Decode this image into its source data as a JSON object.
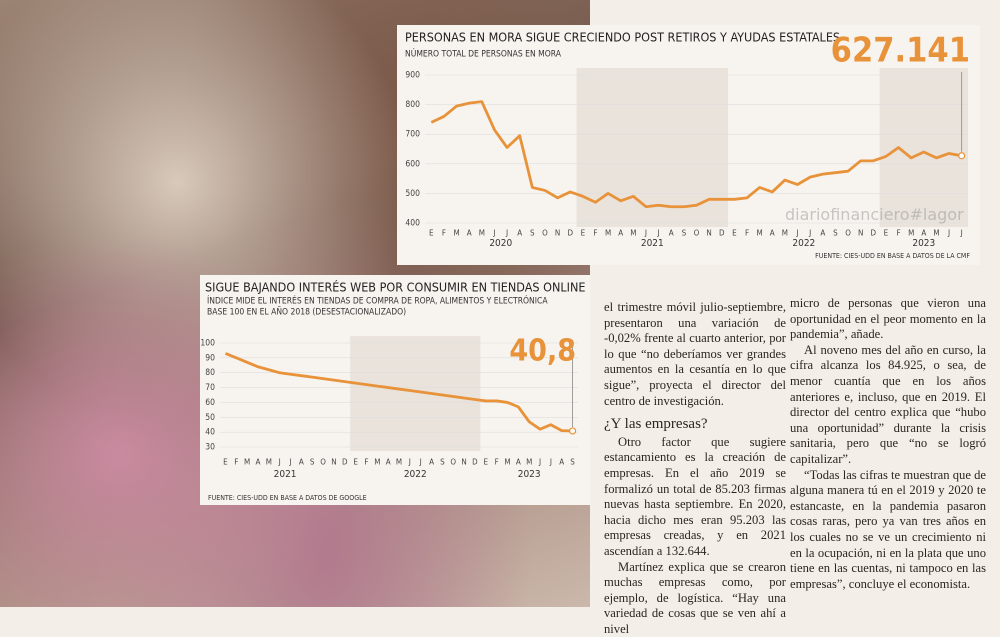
{
  "chart_data": [
    {
      "type": "line",
      "title": "PERSONAS EN MORA SIGUE CRECIENDO POST RETIROS Y AYUDAS ESTATALES",
      "subtitle": [
        "NÚMERO TOTAL DE PERSONAS EN MORA"
      ],
      "categories": [
        "E",
        "F",
        "M",
        "A",
        "M",
        "J",
        "J",
        "A",
        "S",
        "O",
        "N",
        "D",
        "E",
        "F",
        "M",
        "A",
        "M",
        "J",
        "J",
        "A",
        "S",
        "O",
        "N",
        "D",
        "E",
        "F",
        "M",
        "A",
        "M",
        "J",
        "J",
        "A",
        "S",
        "O",
        "N",
        "D",
        "E",
        "F",
        "M",
        "A",
        "M",
        "J",
        "J"
      ],
      "year_labels": [
        "2020",
        "2021",
        "2022",
        "2023"
      ],
      "values": [
        740,
        760,
        795,
        805,
        810,
        715,
        655,
        695,
        520,
        510,
        485,
        505,
        490,
        470,
        500,
        475,
        490,
        455,
        460,
        455,
        455,
        460,
        480,
        480,
        480,
        485,
        520,
        505,
        545,
        530,
        555,
        565,
        570,
        575,
        610,
        610,
        625,
        655,
        620,
        640,
        620,
        635,
        627.141
      ],
      "value_labels": [
        null,
        null,
        null,
        null,
        null,
        null,
        null,
        null,
        null,
        null,
        null,
        null,
        null,
        null,
        null,
        null,
        null,
        null,
        null,
        null,
        null,
        null,
        null,
        null,
        null,
        null,
        null,
        null,
        null,
        null,
        null,
        null,
        null,
        null,
        null,
        null,
        null,
        null,
        null,
        null,
        null,
        null,
        "627.141"
      ],
      "color": "#e8923a",
      "ylim": [
        400,
        900
      ],
      "yticks": [
        400,
        500,
        600,
        700,
        800,
        900
      ],
      "source": "FUENTE: CIES-UDD EN BASE A DATOS DE LA CMF"
    },
    {
      "type": "line",
      "title": "SIGUE BAJANDO INTERÉS WEB POR CONSUMIR EN TIENDAS ONLINE",
      "subtitle": [
        "ÍNDICE MIDE EL INTERÉS EN TIENDAS DE COMPRA DE ROPA, ALIMENTOS Y ELECTRÓNICA",
        "BASE 100 EN EL AÑO 2018 (DESESTACIONALIZADO)"
      ],
      "categories": [
        "E",
        "F",
        "M",
        "A",
        "M",
        "J",
        "J",
        "A",
        "S",
        "O",
        "N",
        "D",
        "E",
        "F",
        "M",
        "A",
        "M",
        "J",
        "J",
        "A",
        "S",
        "O",
        "N",
        "D",
        "E",
        "F",
        "M",
        "A",
        "M",
        "J",
        "J",
        "A",
        "S"
      ],
      "year_labels": [
        "2021",
        "2022",
        "2023"
      ],
      "values": [
        93,
        90,
        87,
        84,
        82,
        80,
        79,
        78,
        77,
        76,
        75,
        74,
        73,
        72,
        71,
        70,
        69,
        68,
        67,
        66,
        65,
        64,
        63,
        62,
        61,
        61,
        60,
        57,
        47,
        42,
        45,
        41,
        40.8
      ],
      "value_labels": [
        null,
        null,
        null,
        null,
        null,
        null,
        null,
        null,
        null,
        null,
        null,
        null,
        null,
        null,
        null,
        null,
        null,
        null,
        null,
        null,
        null,
        null,
        null,
        null,
        null,
        null,
        null,
        null,
        null,
        null,
        null,
        null,
        "40,8"
      ],
      "color": "#e8923a",
      "ylim": [
        30,
        100
      ],
      "yticks": [
        30,
        40,
        50,
        60,
        70,
        80,
        90,
        100
      ],
      "source": "FUENTE: CIES-UDD EN BASE A DATOS DE GOOGLE"
    }
  ],
  "watermark": "diariofinanciero#lagor",
  "article": {
    "column_1": [
      "el trimestre móvil julio-septiembre, presentaron una variación de -0,02% frente al cuarto anterior, por lo que “no deberíamos ver grandes aumentos en la cesantía en lo que sigue”, proyecta el director del centro de investigación."
    ],
    "heading": "¿Y las empresas?",
    "column_1_after": [
      "Otro factor que sugiere estancamiento es la creación de empresas. En el año 2019 se formalizó un total de 85.203 firmas nuevas hasta septiembre. En 2020, hacia dicho mes eran 95.203 las empresas creadas, y en 2021 ascendían a 132.644.",
      "Martínez explica que se crearon muchas empresas como, por ejemplo, de logística. “Hay una variedad de cosas que se ven ahí a nivel"
    ],
    "column_2": [
      "micro de personas que vieron una oportunidad en el peor momento en la pandemia”, añade.",
      "Al noveno mes del año en curso, la cifra alcanza los 84.925, o sea, de menor cuantía que en los años anteriores e, incluso, que en 2019. El director del centro explica que “hubo una oportunidad” durante la crisis sanitaria, pero que “no se logró capitalizar”.",
      "“Todas las cifras te muestran que de alguna manera tú en el 2019 y 2020 te estancaste, en la pandemia pasaron cosas raras, pero ya van tres años en los cuales no se ve un crecimiento ni en la ocupación, ni en la plata que uno tiene en las cuentas, ni tampoco en las empresas”, concluye el economista."
    ]
  }
}
